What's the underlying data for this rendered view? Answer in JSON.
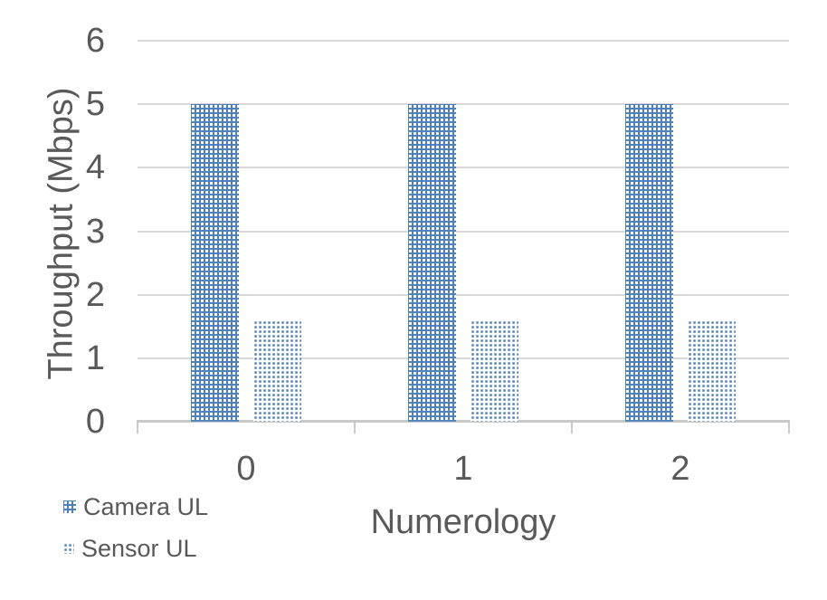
{
  "chart_data": {
    "type": "bar",
    "categories": [
      "0",
      "1",
      "2"
    ],
    "series": [
      {
        "name": "Camera UL",
        "values": [
          5,
          5,
          5
        ],
        "fill_pattern": "blue-with-white-dots"
      },
      {
        "name": "Sensor UL",
        "values": [
          1.6,
          1.6,
          1.6
        ],
        "fill_pattern": "white-with-blue-dots"
      }
    ],
    "title": "",
    "xlabel": "Numerology",
    "ylabel": "Throughput (Mbps)",
    "ylim": [
      0,
      6
    ],
    "yticks": [
      0,
      1,
      2,
      3,
      4,
      5,
      6
    ],
    "grid": true,
    "legend_position": "bottom-left"
  },
  "colors": {
    "series_blue": "#4f81bd",
    "gridline": "#d9d9d9",
    "axis_line": "#c9c9c9",
    "text": "#595959",
    "background": "#ffffff"
  }
}
